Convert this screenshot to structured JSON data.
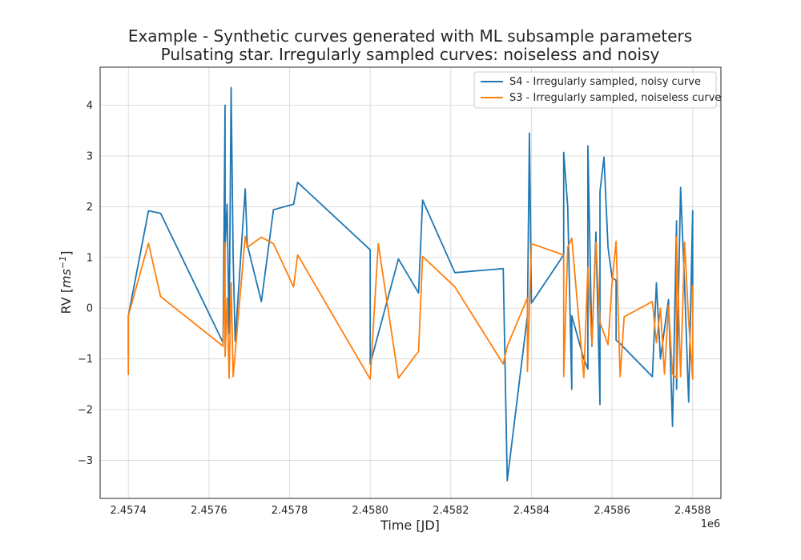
{
  "chart_data": {
    "type": "line",
    "title_line1": "Example - Synthetic curves generated with ML subsample parameters",
    "title_line2": "Pulsating star. Irregularly sampled curves: noiseless and noisy",
    "xlabel": "Time [JD]",
    "ylabel_main": "RV [",
    "ylabel_unit": "ms",
    "ylabel_exp": "−1",
    "ylabel_close": "]",
    "x_offset_label": "1e6",
    "xlim": [
      2.45733,
      2.45887
    ],
    "ylim": [
      -3.75,
      4.75
    ],
    "x_ticks": [
      2.4574,
      2.4576,
      2.4578,
      2.458,
      2.4582,
      2.4584,
      2.4586,
      2.4588
    ],
    "x_tick_labels": [
      "2.4574",
      "2.4576",
      "2.4578",
      "2.4580",
      "2.4582",
      "2.4584",
      "2.4586",
      "2.4588"
    ],
    "y_ticks": [
      -3,
      -2,
      -1,
      0,
      1,
      2,
      3,
      4
    ],
    "y_tick_labels": [
      "−3",
      "−2",
      "−1",
      "0",
      "1",
      "2",
      "3",
      "4"
    ],
    "grid": true,
    "legend_position": "upper right",
    "series": [
      {
        "name": "S4 - Irregularly sampled, noisy curve",
        "color": "#1f77b4",
        "points": [
          [
            2.4574,
            -0.95
          ],
          [
            2.4574,
            -0.15
          ],
          [
            2.45745,
            1.92
          ],
          [
            2.45748,
            1.87
          ],
          [
            2.457635,
            -0.68
          ],
          [
            2.45764,
            4.0
          ],
          [
            2.45764,
            1.2
          ],
          [
            2.457645,
            2.05
          ],
          [
            2.45765,
            -0.5
          ],
          [
            2.457655,
            4.35
          ],
          [
            2.45766,
            1.0
          ],
          [
            2.457665,
            -0.65
          ],
          [
            2.45769,
            2.35
          ],
          [
            2.457695,
            1.25
          ],
          [
            2.45773,
            0.13
          ],
          [
            2.45776,
            1.94
          ],
          [
            2.45781,
            2.05
          ],
          [
            2.45782,
            2.48
          ],
          [
            2.458,
            1.15
          ],
          [
            2.458,
            -1.1
          ],
          [
            2.45807,
            0.97
          ],
          [
            2.45812,
            0.3
          ],
          [
            2.45813,
            2.13
          ],
          [
            2.45821,
            0.7
          ],
          [
            2.45833,
            0.78
          ],
          [
            2.45834,
            -3.4
          ],
          [
            2.45839,
            -0.15
          ],
          [
            2.458395,
            3.45
          ],
          [
            2.4584,
            0.1
          ],
          [
            2.45848,
            1.05
          ],
          [
            2.45848,
            3.07
          ],
          [
            2.45849,
            2.0
          ],
          [
            2.4585,
            -1.6
          ],
          [
            2.4585,
            -0.15
          ],
          [
            2.45853,
            -1.0
          ],
          [
            2.45854,
            -1.2
          ],
          [
            2.45854,
            3.2
          ],
          [
            2.45855,
            -0.75
          ],
          [
            2.45856,
            1.5
          ],
          [
            2.45857,
            -1.9
          ],
          [
            2.45857,
            2.3
          ],
          [
            2.45858,
            2.98
          ],
          [
            2.45859,
            1.2
          ],
          [
            2.4586,
            0.6
          ],
          [
            2.45861,
            0.55
          ],
          [
            2.45861,
            -0.63
          ],
          [
            2.45862,
            -0.7
          ],
          [
            2.4587,
            -1.35
          ],
          [
            2.45871,
            0.5
          ],
          [
            2.45872,
            -1.0
          ],
          [
            2.45874,
            0.17
          ],
          [
            2.45875,
            -2.33
          ],
          [
            2.45876,
            1.72
          ],
          [
            2.45876,
            -1.6
          ],
          [
            2.45877,
            2.38
          ],
          [
            2.45878,
            0.45
          ],
          [
            2.45879,
            -1.85
          ],
          [
            2.4588,
            1.92
          ],
          [
            2.4588,
            -0.08
          ]
        ]
      },
      {
        "name": "S3 - Irregularly sampled, noiseless curve",
        "color": "#ff7f0e",
        "points": [
          [
            2.4574,
            -1.32
          ],
          [
            2.4574,
            -0.15
          ],
          [
            2.45745,
            1.28
          ],
          [
            2.45748,
            0.23
          ],
          [
            2.457635,
            -0.75
          ],
          [
            2.45764,
            1.3
          ],
          [
            2.45764,
            -0.95
          ],
          [
            2.457645,
            0.2
          ],
          [
            2.45765,
            -1.38
          ],
          [
            2.457655,
            0.5
          ],
          [
            2.45766,
            -1.35
          ],
          [
            2.45769,
            1.42
          ],
          [
            2.457695,
            1.2
          ],
          [
            2.45773,
            1.4
          ],
          [
            2.45776,
            1.27
          ],
          [
            2.45781,
            0.42
          ],
          [
            2.45782,
            1.05
          ],
          [
            2.458,
            -1.4
          ],
          [
            2.45802,
            1.27
          ],
          [
            2.45807,
            -1.38
          ],
          [
            2.45812,
            -0.85
          ],
          [
            2.45813,
            1.02
          ],
          [
            2.45821,
            0.42
          ],
          [
            2.45833,
            -1.1
          ],
          [
            2.45834,
            -0.75
          ],
          [
            2.45839,
            0.2
          ],
          [
            2.45839,
            -1.25
          ],
          [
            2.4584,
            1.27
          ],
          [
            2.45848,
            1.05
          ],
          [
            2.45848,
            -1.35
          ],
          [
            2.45849,
            1.2
          ],
          [
            2.4585,
            1.38
          ],
          [
            2.45853,
            -1.37
          ],
          [
            2.45854,
            0.8
          ],
          [
            2.45855,
            -0.72
          ],
          [
            2.45856,
            1.3
          ],
          [
            2.45857,
            -0.28
          ],
          [
            2.45859,
            -0.72
          ],
          [
            2.4586,
            0.5
          ],
          [
            2.45861,
            1.32
          ],
          [
            2.45862,
            -1.35
          ],
          [
            2.45863,
            -0.17
          ],
          [
            2.4587,
            0.13
          ],
          [
            2.45871,
            -0.68
          ],
          [
            2.45872,
            0.0
          ],
          [
            2.45873,
            -1.3
          ],
          [
            2.45874,
            0.05
          ],
          [
            2.45875,
            -1.3
          ],
          [
            2.45876,
            -1.38
          ],
          [
            2.45876,
            1.4
          ],
          [
            2.45877,
            -1.35
          ],
          [
            2.45878,
            1.3
          ],
          [
            2.45879,
            -0.25
          ],
          [
            2.4588,
            -1.4
          ],
          [
            2.4588,
            0.45
          ]
        ]
      }
    ]
  }
}
